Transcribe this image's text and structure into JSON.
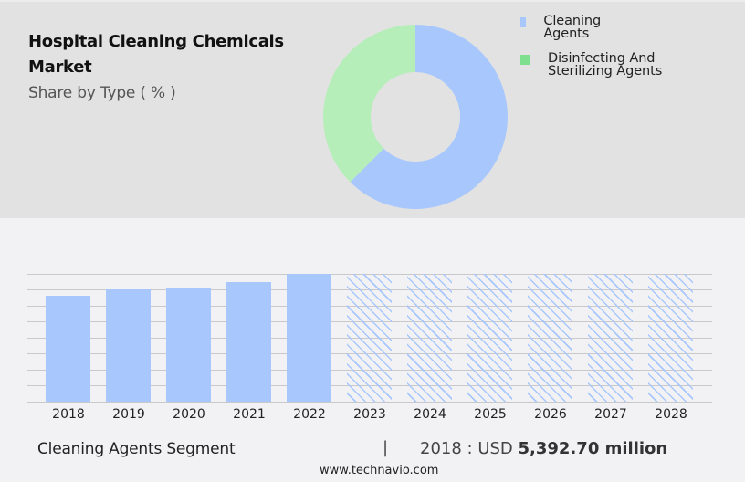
{
  "header": {
    "title": "Hospital Cleaning Chemicals Market",
    "subtitle": "Share by Type ( % )"
  },
  "legend": {
    "items": [
      {
        "label": "Cleaning Agents",
        "color": "#a8c8fd"
      },
      {
        "label": "Disinfecting And Sterilizing Agents",
        "color": "#7ee08e"
      }
    ]
  },
  "footer": {
    "segment_label": "Cleaning Agents Segment",
    "divider": "|",
    "value_prefix": "2018 : USD",
    "value_bold": "5,392.70 million",
    "source": "www.technavio.com"
  },
  "colors": {
    "top_bg": "#e2e2e2",
    "bottom_bg": "#f2f2f4",
    "bar_blue": "#a8c8fd",
    "donut_blue": "#a8c8fd",
    "donut_green": "#b5eeb8",
    "gridline": "#c9c9cc"
  },
  "chart_data": [
    {
      "type": "pie",
      "variant": "donut",
      "title": "Hospital Cleaning Chemicals Market",
      "subtitle": "Share by Type ( % )",
      "categories": [
        "Cleaning Agents",
        "Disinfecting And Sterilizing Agents"
      ],
      "values": [
        62.5,
        37.5
      ],
      "legend_position": "right"
    },
    {
      "type": "bar",
      "title": "Cleaning Agents Segment",
      "categories": [
        "2018",
        "2019",
        "2020",
        "2021",
        "2022",
        "2023",
        "2024",
        "2025",
        "2026",
        "2027",
        "2028"
      ],
      "series": [
        {
          "name": "Cleaning Agents (actual, USD million)",
          "values": [
            5392.7,
            5718,
            5765,
            6090,
            6509,
            null,
            null,
            null,
            null,
            null,
            null
          ]
        },
        {
          "name": "Forecast (hatched placeholder)",
          "values": [
            null,
            null,
            null,
            null,
            null,
            6509,
            6509,
            6509,
            6509,
            6509,
            6509
          ]
        }
      ],
      "annotation": "2018 : USD 5,392.70 million",
      "xlabel": "",
      "ylabel": "",
      "ylim": [
        0,
        6509
      ],
      "grid": true,
      "gridlines": 9
    }
  ]
}
